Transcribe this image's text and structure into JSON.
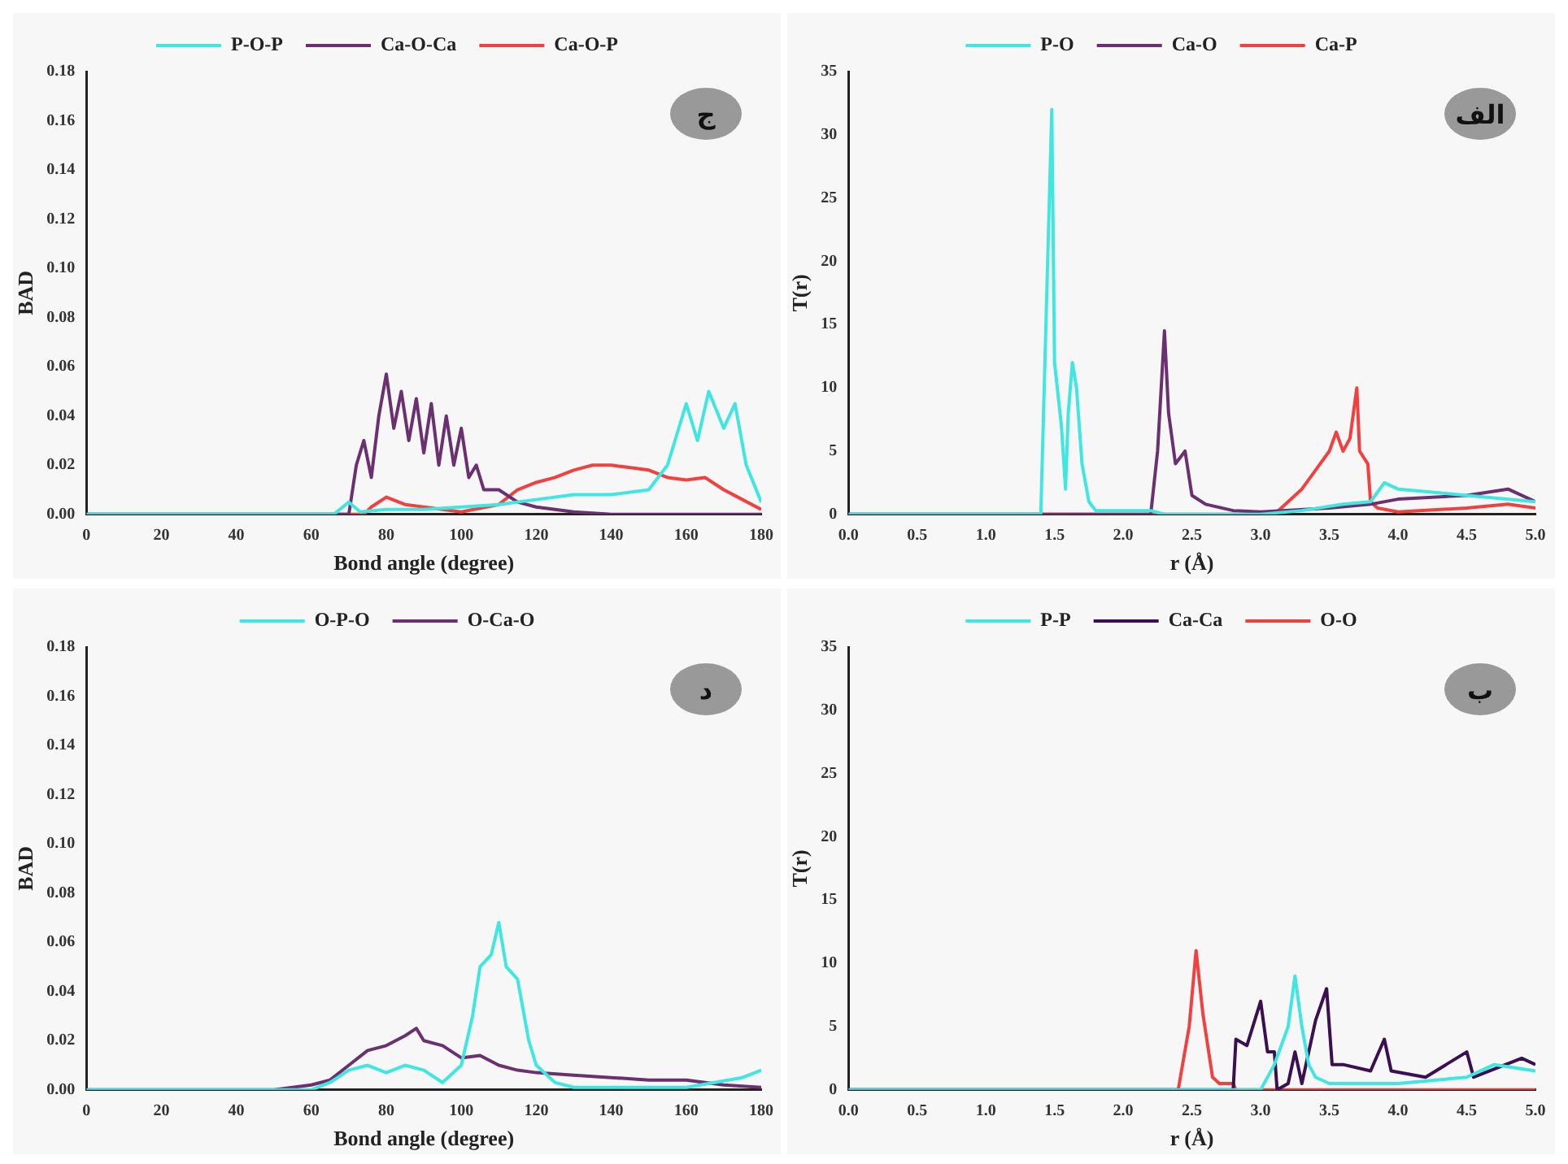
{
  "chart_data": [
    {
      "type": "line",
      "xlabel": "Bond angle (degree)",
      "ylabel": "BAD",
      "annotations": [
        "ج"
      ],
      "legend": "top",
      "marker": "none",
      "grid": false,
      "xlim": [
        0,
        180
      ],
      "ylim": [
        0,
        0.18
      ],
      "xticks": [
        0,
        20,
        40,
        60,
        80,
        100,
        120,
        140,
        160,
        180
      ],
      "yticks": [
        {
          "value": 0,
          "label": "0.00"
        },
        {
          "value": 0.02,
          "label": "0.02"
        },
        {
          "value": 0.04,
          "label": "0.04"
        },
        {
          "value": 0.06,
          "label": "0.06"
        },
        {
          "value": 0.08,
          "label": "0.08"
        },
        {
          "value": 0.1,
          "label": "0.10"
        },
        {
          "value": 0.12,
          "label": "0.12"
        },
        {
          "value": 0.14,
          "label": "0.14"
        },
        {
          "value": 0.16,
          "label": "0.16"
        },
        {
          "value": 0.18,
          "label": "0.18"
        }
      ],
      "series": [
        {
          "name": "P-O-P",
          "color": "#40e6e0",
          "x": [
            0,
            66,
            70,
            73,
            80,
            90,
            100,
            110,
            120,
            130,
            140,
            150,
            155,
            160,
            163,
            166,
            170,
            173,
            176,
            180
          ],
          "values": [
            0,
            0,
            0.005,
            0.001,
            0.002,
            0.002,
            0.003,
            0.004,
            0.006,
            0.008,
            0.008,
            0.01,
            0.02,
            0.045,
            0.03,
            0.05,
            0.035,
            0.045,
            0.02,
            0.005
          ]
        },
        {
          "name": "Ca-O-Ca",
          "color": "#6a3070",
          "x": [
            0,
            70,
            72,
            74,
            76,
            78,
            80,
            82,
            84,
            86,
            88,
            90,
            92,
            94,
            96,
            98,
            100,
            102,
            104,
            106,
            110,
            115,
            120,
            130,
            140,
            180
          ],
          "values": [
            0,
            0,
            0.02,
            0.03,
            0.015,
            0.04,
            0.057,
            0.035,
            0.05,
            0.03,
            0.047,
            0.025,
            0.045,
            0.02,
            0.04,
            0.02,
            0.035,
            0.015,
            0.02,
            0.01,
            0.01,
            0.005,
            0.003,
            0.001,
            0,
            0
          ]
        },
        {
          "name": "Ca-O-P",
          "color": "#f04040",
          "x": [
            0,
            74,
            76,
            80,
            85,
            90,
            95,
            100,
            110,
            115,
            120,
            125,
            130,
            135,
            140,
            145,
            150,
            155,
            160,
            165,
            170,
            175,
            180
          ],
          "values": [
            0,
            0,
            0.003,
            0.007,
            0.004,
            0.003,
            0.002,
            0.001,
            0.004,
            0.01,
            0.013,
            0.015,
            0.018,
            0.02,
            0.02,
            0.019,
            0.018,
            0.015,
            0.014,
            0.015,
            0.01,
            0.006,
            0.002
          ]
        }
      ]
    },
    {
      "type": "line",
      "xlabel": "r (Å)",
      "ylabel": "T(r)",
      "annotations": [
        "الف"
      ],
      "legend": "top",
      "marker": "none",
      "grid": false,
      "xlim": [
        0,
        5
      ],
      "ylim": [
        0,
        35
      ],
      "xticks": [
        {
          "value": 0,
          "label": "0.0"
        },
        {
          "value": 0.5,
          "label": "0.5"
        },
        {
          "value": 1,
          "label": "1.0"
        },
        {
          "value": 1.5,
          "label": "1.5"
        },
        {
          "value": 2,
          "label": "2.0"
        },
        {
          "value": 2.5,
          "label": "2.5"
        },
        {
          "value": 3,
          "label": "3.0"
        },
        {
          "value": 3.5,
          "label": "3.5"
        },
        {
          "value": 4,
          "label": "4.0"
        },
        {
          "value": 4.5,
          "label": "4.5"
        },
        {
          "value": 5,
          "label": "5.0"
        }
      ],
      "yticks": [
        0,
        5,
        10,
        15,
        20,
        25,
        30,
        35
      ],
      "series": [
        {
          "name": "P-O",
          "color": "#40e6e0",
          "x": [
            0,
            1.4,
            1.45,
            1.48,
            1.5,
            1.55,
            1.58,
            1.6,
            1.63,
            1.66,
            1.7,
            1.75,
            1.8,
            2.2,
            2.3,
            3.0,
            3.3,
            3.6,
            3.8,
            3.9,
            4.0,
            4.5,
            5.0
          ],
          "values": [
            0,
            0,
            20,
            32,
            12,
            7,
            2,
            8,
            12,
            10,
            4,
            1,
            0.3,
            0.3,
            0,
            0,
            0.3,
            0.8,
            1,
            2.5,
            2,
            1.5,
            1
          ]
        },
        {
          "name": "Ca-O",
          "color": "#6a3070",
          "x": [
            0,
            2.2,
            2.25,
            2.3,
            2.33,
            2.38,
            2.45,
            2.5,
            2.6,
            2.8,
            3.0,
            3.5,
            3.8,
            4.0,
            4.5,
            4.8,
            5.0
          ],
          "values": [
            0,
            0,
            5,
            14.5,
            8,
            4,
            5,
            1.5,
            0.8,
            0.3,
            0.2,
            0.5,
            0.8,
            1.2,
            1.5,
            2,
            1
          ]
        },
        {
          "name": "Ca-P",
          "color": "#f04040",
          "x": [
            0,
            3.1,
            3.2,
            3.3,
            3.4,
            3.5,
            3.55,
            3.6,
            3.65,
            3.7,
            3.72,
            3.78,
            3.8,
            3.85,
            4.0,
            4.5,
            4.8,
            5.0
          ],
          "values": [
            0,
            0,
            1,
            2,
            3.5,
            5,
            6.5,
            5,
            6,
            10,
            5,
            4,
            1,
            0.5,
            0.2,
            0.5,
            0.8,
            0.5
          ]
        }
      ]
    },
    {
      "type": "line",
      "xlabel": "Bond angle (degree)",
      "ylabel": "BAD",
      "annotations": [
        "د"
      ],
      "legend": "top",
      "marker": "none",
      "grid": false,
      "xlim": [
        0,
        180
      ],
      "ylim": [
        0,
        0.18
      ],
      "xticks": [
        0,
        20,
        40,
        60,
        80,
        100,
        120,
        140,
        160,
        180
      ],
      "yticks": [
        {
          "value": 0,
          "label": "0.00"
        },
        {
          "value": 0.02,
          "label": "0.02"
        },
        {
          "value": 0.04,
          "label": "0.04"
        },
        {
          "value": 0.06,
          "label": "0.06"
        },
        {
          "value": 0.08,
          "label": "0.08"
        },
        {
          "value": 0.1,
          "label": "0.10"
        },
        {
          "value": 0.12,
          "label": "0.12"
        },
        {
          "value": 0.14,
          "label": "0.14"
        },
        {
          "value": 0.16,
          "label": "0.16"
        },
        {
          "value": 0.18,
          "label": "0.18"
        }
      ],
      "series": [
        {
          "name": "O-P-O",
          "color": "#40e6e0",
          "x": [
            0,
            60,
            65,
            70,
            75,
            80,
            85,
            90,
            95,
            100,
            103,
            105,
            108,
            110,
            112,
            115,
            118,
            120,
            125,
            130,
            160,
            175,
            180
          ],
          "values": [
            0,
            0,
            0.003,
            0.008,
            0.01,
            0.007,
            0.01,
            0.008,
            0.003,
            0.01,
            0.03,
            0.05,
            0.055,
            0.068,
            0.05,
            0.045,
            0.02,
            0.01,
            0.003,
            0.001,
            0.001,
            0.005,
            0.008
          ]
        },
        {
          "name": "O-Ca-O",
          "color": "#6a3070",
          "x": [
            0,
            50,
            55,
            60,
            65,
            70,
            75,
            80,
            85,
            88,
            90,
            95,
            100,
            105,
            110,
            115,
            120,
            130,
            140,
            150,
            160,
            170,
            180
          ],
          "values": [
            0,
            0,
            0.001,
            0.002,
            0.004,
            0.01,
            0.016,
            0.018,
            0.022,
            0.025,
            0.02,
            0.018,
            0.013,
            0.014,
            0.01,
            0.008,
            0.007,
            0.006,
            0.005,
            0.004,
            0.004,
            0.002,
            0.001
          ]
        }
      ]
    },
    {
      "type": "line",
      "xlabel": "r (Å)",
      "ylabel": "T(r)",
      "annotations": [
        "ب"
      ],
      "legend": "top",
      "marker": "none",
      "grid": false,
      "xlim": [
        0,
        5
      ],
      "ylim": [
        0,
        35
      ],
      "xticks": [
        {
          "value": 0,
          "label": "0.0"
        },
        {
          "value": 0.5,
          "label": "0.5"
        },
        {
          "value": 1,
          "label": "1.0"
        },
        {
          "value": 1.5,
          "label": "1.5"
        },
        {
          "value": 2,
          "label": "2.0"
        },
        {
          "value": 2.5,
          "label": "2.5"
        },
        {
          "value": 3,
          "label": "3.0"
        },
        {
          "value": 3.5,
          "label": "3.5"
        },
        {
          "value": 4,
          "label": "4.0"
        },
        {
          "value": 4.5,
          "label": "4.5"
        },
        {
          "value": 5,
          "label": "5.0"
        }
      ],
      "yticks": [
        0,
        5,
        10,
        15,
        20,
        25,
        30,
        35
      ],
      "series": [
        {
          "name": "P-P",
          "color": "#40e6e0",
          "x": [
            0,
            3.0,
            3.1,
            3.2,
            3.25,
            3.3,
            3.35,
            3.4,
            3.5,
            4.0,
            4.5,
            4.7,
            5.0
          ],
          "values": [
            0,
            0,
            2,
            5,
            9,
            5,
            2,
            1,
            0.5,
            0.5,
            1,
            2,
            1.5
          ]
        },
        {
          "name": "Ca-Ca",
          "color": "#3a1050",
          "x": [
            0,
            2.8,
            2.82,
            2.9,
            3.0,
            3.05,
            3.1,
            3.12,
            3.2,
            3.25,
            3.3,
            3.4,
            3.48,
            3.52,
            3.6,
            3.8,
            3.9,
            3.95,
            4.2,
            4.5,
            4.55,
            4.9,
            5.0
          ],
          "values": [
            0,
            0,
            4,
            3.5,
            7,
            3,
            3,
            0,
            0.5,
            3,
            0.5,
            5.5,
            8,
            2,
            2,
            1.5,
            4,
            1.5,
            1,
            3,
            1,
            2.5,
            2
          ]
        },
        {
          "name": "O-O",
          "color": "#f04040",
          "x": [
            0,
            2.4,
            2.48,
            2.53,
            2.58,
            2.65,
            2.7,
            2.8,
            2.82,
            5.0
          ],
          "values": [
            0,
            0,
            5,
            11,
            6,
            1,
            0.5,
            0.5,
            0,
            0
          ]
        }
      ]
    }
  ]
}
